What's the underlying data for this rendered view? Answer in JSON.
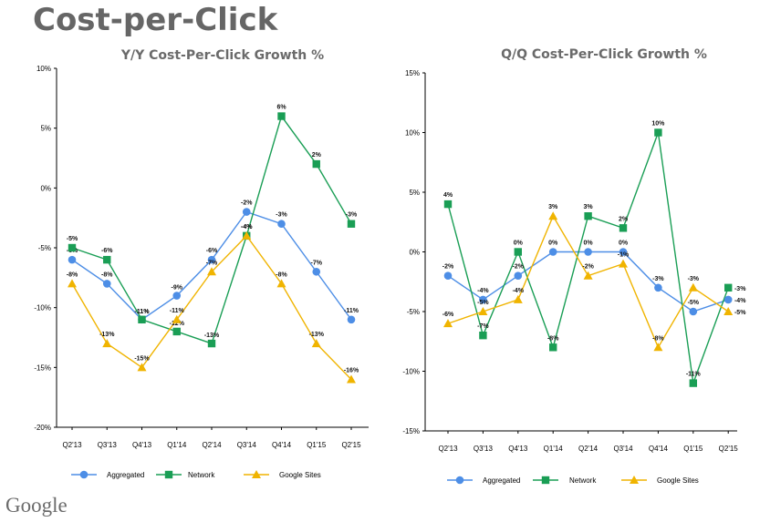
{
  "page": {
    "title": "Cost-per-Click",
    "logo_text": "Google"
  },
  "legend": [
    "Aggregated",
    "Network",
    "Google Sites"
  ],
  "chart_data": [
    {
      "type": "line",
      "title": "Y/Y Cost-Per-Click Growth %",
      "categories": [
        "Q2'13",
        "Q3'13",
        "Q4'13",
        "Q1'14",
        "Q2'14",
        "Q3'14",
        "Q4'14",
        "Q1'15",
        "Q2'15"
      ],
      "ylim": [
        -20,
        10
      ],
      "yticks": [
        -20,
        -15,
        -10,
        -5,
        0,
        5,
        10
      ],
      "ytick_labels": [
        "-20%",
        "-15%",
        "-10%",
        "-5%",
        "0%",
        "5%",
        "10%"
      ],
      "grid": false,
      "legend_position": "bottom",
      "series": [
        {
          "name": "Aggregated",
          "color": "#4d8ee6",
          "marker": "circle",
          "values": [
            -6,
            -8,
            -11,
            -9,
            -6,
            -2,
            -3,
            -7,
            -11
          ],
          "labels": [
            "-6%",
            "-8%",
            "-11%",
            "-9%",
            "-6%",
            "-2%",
            "-3%",
            "-7%",
            "-11%"
          ]
        },
        {
          "name": "Network",
          "color": "#1a9e55",
          "marker": "square",
          "values": [
            -5,
            -6,
            -11,
            -12,
            -13,
            -4,
            6,
            2,
            -3
          ],
          "labels": [
            "-5%",
            "-6%",
            "-11%",
            "-12%",
            "-13%",
            "-4%",
            "6%",
            "2%",
            "-3%"
          ]
        },
        {
          "name": "Google Sites",
          "color": "#f0b400",
          "marker": "triangle",
          "values": [
            -8,
            -13,
            -15,
            -11,
            -7,
            -4,
            -8,
            -13,
            -16
          ],
          "labels": [
            "-8%",
            "-13%",
            "-15%",
            "-11%",
            "-7%",
            "-4%",
            "-8%",
            "-13%",
            "-16%"
          ]
        }
      ]
    },
    {
      "type": "line",
      "title": "Q/Q Cost-Per-Click Growth %",
      "categories": [
        "Q2'13",
        "Q3'13",
        "Q4'13",
        "Q1'14",
        "Q2'14",
        "Q3'14",
        "Q4'14",
        "Q1'15",
        "Q2'15"
      ],
      "ylim": [
        -15,
        15
      ],
      "yticks": [
        -15,
        -10,
        -5,
        0,
        5,
        10,
        15
      ],
      "ytick_labels": [
        "-15%",
        "-10%",
        "-5%",
        "0%",
        "5%",
        "10%",
        "15%"
      ],
      "grid": false,
      "legend_position": "bottom",
      "series": [
        {
          "name": "Aggregated",
          "color": "#4d8ee6",
          "marker": "circle",
          "values": [
            -2,
            -4,
            -2,
            0,
            0,
            0,
            -3,
            -5,
            -4
          ],
          "labels": [
            "-2%",
            "-4%",
            "-2%",
            "0%",
            "0%",
            "0%",
            "-3%",
            "-5%",
            "-4%"
          ]
        },
        {
          "name": "Network",
          "color": "#1a9e55",
          "marker": "square",
          "values": [
            4,
            -7,
            0,
            -8,
            3,
            2,
            10,
            -11,
            -3
          ],
          "labels": [
            "4%",
            "-7%",
            "0%",
            "-8%",
            "3%",
            "2%",
            "10%",
            "-11%",
            "-3%"
          ]
        },
        {
          "name": "Google Sites",
          "color": "#f0b400",
          "marker": "triangle",
          "values": [
            -6,
            -5,
            -4,
            3,
            -2,
            -1,
            -8,
            -3,
            -5
          ],
          "labels": [
            "-6%",
            "-5%",
            "-4%",
            "3%",
            "-2%",
            "-1%",
            "-8%",
            "-3%",
            "-5%"
          ]
        }
      ]
    }
  ]
}
